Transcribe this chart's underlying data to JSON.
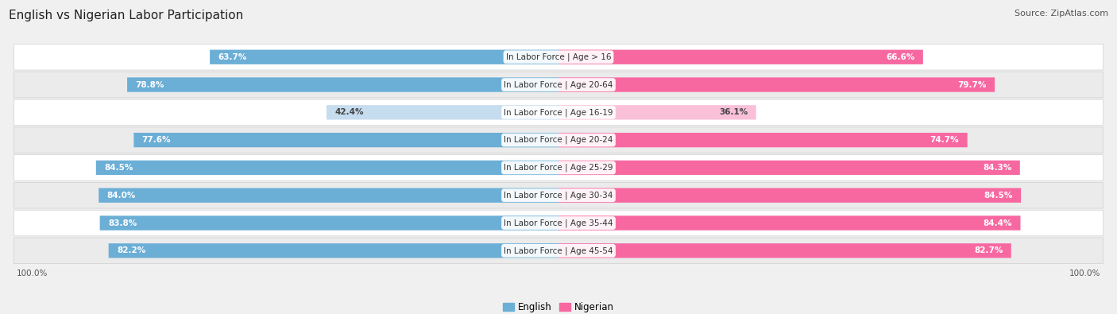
{
  "title": "English vs Nigerian Labor Participation",
  "source": "Source: ZipAtlas.com",
  "categories": [
    "In Labor Force | Age > 16",
    "In Labor Force | Age 20-64",
    "In Labor Force | Age 16-19",
    "In Labor Force | Age 20-24",
    "In Labor Force | Age 25-29",
    "In Labor Force | Age 30-34",
    "In Labor Force | Age 35-44",
    "In Labor Force | Age 45-54"
  ],
  "english_values": [
    63.7,
    78.8,
    42.4,
    77.6,
    84.5,
    84.0,
    83.8,
    82.2
  ],
  "nigerian_values": [
    66.6,
    79.7,
    36.1,
    74.7,
    84.3,
    84.5,
    84.4,
    82.7
  ],
  "english_color": "#6baed6",
  "nigerian_color": "#f768a1",
  "english_color_light": "#c6dcef",
  "nigerian_color_light": "#f9c0d8",
  "bg_color": "#f0f0f0",
  "row_bg_even": "#ffffff",
  "row_bg_odd": "#ebebeb",
  "title_fontsize": 11,
  "source_fontsize": 8,
  "label_fontsize": 7.5,
  "value_fontsize": 7.5,
  "legend_fontsize": 8.5,
  "max_value": 100.0
}
